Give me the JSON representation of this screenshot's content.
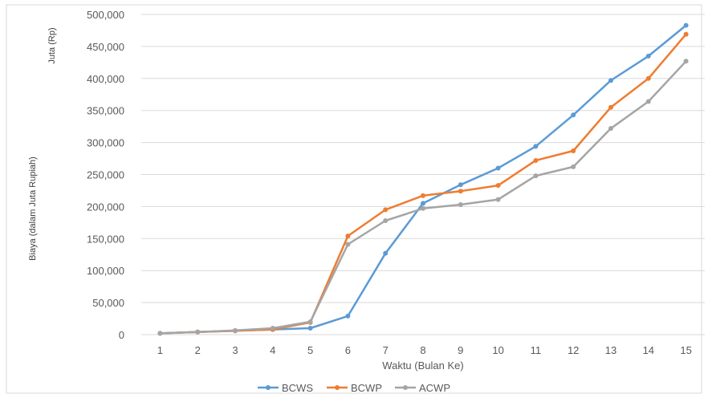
{
  "chart_data": {
    "type": "line",
    "title": "",
    "xlabel": "Waktu (Bulan Ke)",
    "ylabel": "Biaya (dalam Juta Rupiah)",
    "unit_label": "Juta (Rp)",
    "x": [
      1,
      2,
      3,
      4,
      5,
      6,
      7,
      8,
      9,
      10,
      11,
      12,
      13,
      14,
      15
    ],
    "ylim": [
      0,
      500000
    ],
    "yticks": [
      "0",
      "50,000",
      "100,000",
      "150,000",
      "200,000",
      "250,000",
      "300,000",
      "350,000",
      "400,000",
      "450,000",
      "500,000"
    ],
    "grid": true,
    "legend_position": "bottom",
    "series": [
      {
        "name": "BCWS",
        "color": "#5b9bd5",
        "values": [
          2000,
          4000,
          6000,
          8000,
          10000,
          29000,
          127000,
          205000,
          234000,
          260000,
          294000,
          343000,
          397000,
          435000,
          483000
        ]
      },
      {
        "name": "BCWP",
        "color": "#ed7d31",
        "values": [
          2000,
          4000,
          6000,
          8000,
          19000,
          154000,
          195000,
          217000,
          224000,
          233000,
          272000,
          287000,
          355000,
          400000,
          469000
        ]
      },
      {
        "name": "ACWP",
        "color": "#a5a5a5",
        "values": [
          2000,
          4000,
          6500,
          10000,
          20000,
          141000,
          178000,
          197000,
          203000,
          211000,
          248000,
          262000,
          322000,
          364000,
          427000
        ]
      }
    ]
  }
}
